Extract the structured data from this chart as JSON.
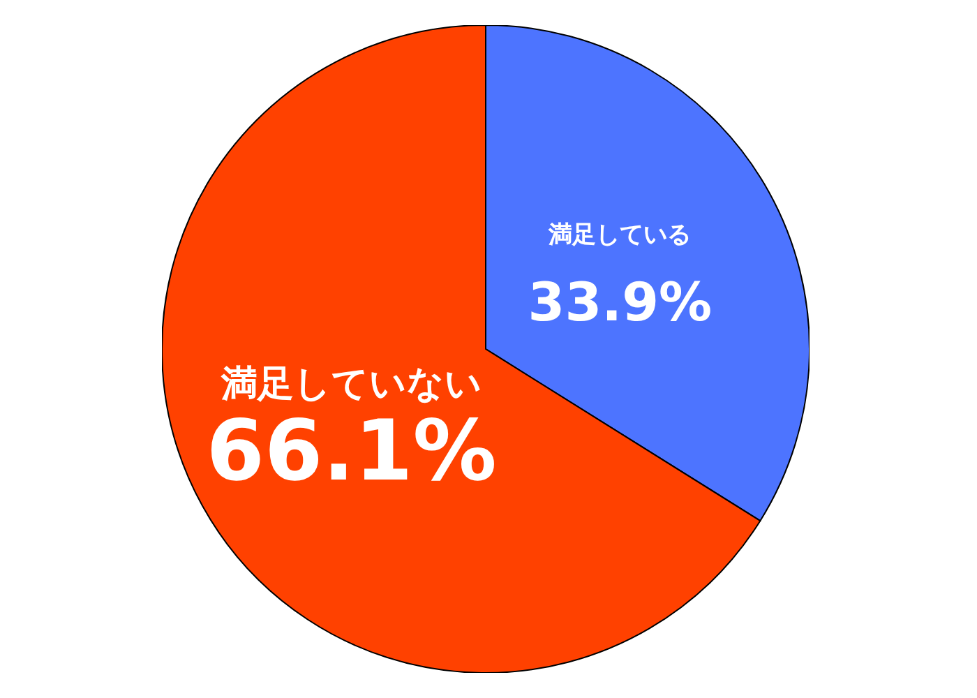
{
  "chart_data": {
    "type": "pie",
    "categories": [
      "満足している",
      "満足していない"
    ],
    "values": [
      33.9,
      66.1
    ],
    "colors": [
      "#4d74ff",
      "#ff4100"
    ],
    "value_labels": [
      "33.9%",
      "66.1%"
    ]
  }
}
